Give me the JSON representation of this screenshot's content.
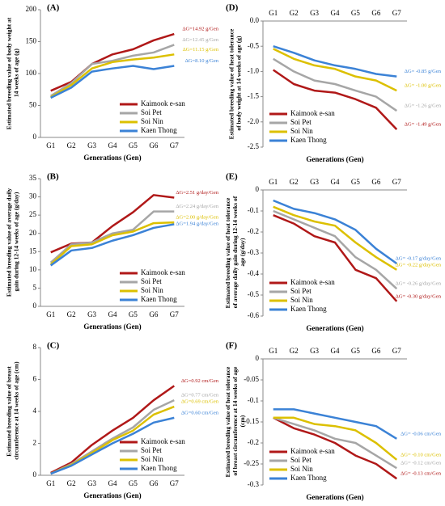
{
  "chart_data": [
    {
      "type": "line",
      "panel_label": "(A)",
      "y_label": "Estimated breeding value of body weight at 14 weeks of age (g)",
      "x_label": "Generations (Gen)",
      "categories": [
        "G1",
        "G2",
        "G3",
        "G4",
        "G5",
        "G6",
        "G7"
      ],
      "ylim": [
        0,
        200
      ],
      "yticks": [
        0,
        50,
        100,
        150,
        200
      ],
      "x_axis_position": "bottom",
      "legend": "lower right",
      "series": [
        {
          "name": "Kaimook e-san",
          "color": "#b01818",
          "values": [
            73,
            87,
            115,
            130,
            138,
            152,
            162
          ],
          "annotation": "ΔG=14.92 g/Gen"
        },
        {
          "name": "Soi Pet",
          "color": "#a6a6a6",
          "values": [
            65,
            85,
            115,
            120,
            128,
            133,
            145
          ],
          "annotation": "ΔG=12.45 g/Gen"
        },
        {
          "name": "Soi Nin",
          "color": "#dcc000",
          "values": [
            63,
            82,
            108,
            118,
            122,
            125,
            130
          ],
          "annotation": "ΔG=11.15 g/Gen"
        },
        {
          "name": "Kaen Thong",
          "color": "#3b82d6",
          "values": [
            62,
            78,
            103,
            108,
            112,
            107,
            112
          ],
          "annotation": "ΔG=8.10 g/Gen"
        }
      ]
    },
    {
      "type": "line",
      "panel_label": "(B)",
      "y_label": "Estimated breeding value of average daily gain during 12-14 weeks of age (g/day)",
      "x_label": "Generations (Gen)",
      "categories": [
        "G1",
        "G2",
        "G3",
        "G4",
        "G5",
        "G6",
        "G7"
      ],
      "ylim": [
        0,
        35
      ],
      "yticks": [
        0,
        5,
        10,
        15,
        20,
        25,
        30,
        35
      ],
      "x_axis_position": "bottom",
      "legend": "lower right",
      "series": [
        {
          "name": "Kaimook e-san",
          "color": "#b01818",
          "values": [
            14.8,
            17.2,
            17.5,
            22,
            25.8,
            30.5,
            29.8
          ],
          "annotation": "ΔG=2.51 g/day/Gen"
        },
        {
          "name": "Soi Pet",
          "color": "#a6a6a6",
          "values": [
            12,
            17,
            17.5,
            20,
            21,
            26,
            26
          ],
          "annotation": "ΔG=2.24 g/day/Gen"
        },
        {
          "name": "Soi Nin",
          "color": "#dcc000",
          "values": [
            11.5,
            16.5,
            17,
            19.5,
            20.5,
            22.8,
            23
          ],
          "annotation": "ΔG=2.00 g/day/Gen"
        },
        {
          "name": "Kaen Thong",
          "color": "#3b82d6",
          "values": [
            11.2,
            15.3,
            16,
            18,
            19.5,
            21.5,
            22.5
          ],
          "annotation": "ΔG=1.94 g/day/Gen"
        }
      ]
    },
    {
      "type": "line",
      "panel_label": "(C)",
      "y_label": "Estimated breeding value of breast circumference at 14 weeks of age (cm)",
      "x_label": "Generations (Gen)",
      "categories": [
        "G1",
        "G2",
        "G3",
        "G4",
        "G5",
        "G6",
        "G7"
      ],
      "ylim": [
        0,
        8
      ],
      "yticks": [
        0,
        2,
        4,
        6,
        8
      ],
      "x_axis_position": "bottom",
      "legend": "lower right",
      "series": [
        {
          "name": "Kaimook e-san",
          "color": "#b01818",
          "values": [
            0.15,
            0.8,
            1.9,
            2.8,
            3.6,
            4.7,
            5.6
          ],
          "annotation": "ΔG=0.92 cm/Gen"
        },
        {
          "name": "Soi Pet",
          "color": "#a6a6a6",
          "values": [
            0.1,
            0.7,
            1.5,
            2.3,
            3.0,
            4.1,
            4.7
          ],
          "annotation": "ΔG=0.77 cm/Gen"
        },
        {
          "name": "Soi Nin",
          "color": "#dcc000",
          "values": [
            0.1,
            0.65,
            1.4,
            2.2,
            2.8,
            3.8,
            4.3
          ],
          "annotation": "ΔG=0.69 cm/Gen"
        },
        {
          "name": "Kaen Thong",
          "color": "#3b82d6",
          "values": [
            0.1,
            0.6,
            1.3,
            2.0,
            2.6,
            3.3,
            3.6
          ],
          "annotation": "ΔG=0.60 cm/Gen"
        }
      ]
    },
    {
      "type": "line",
      "panel_label": "(D)",
      "y_label": "Estimated breeding value of heat tolerance of body weight at 14 weeks of age (g)",
      "x_label": "Generations (Gen)",
      "categories": [
        "G1",
        "G2",
        "G3",
        "G4",
        "G5",
        "G6",
        "G7"
      ],
      "ylim": [
        -2.5,
        0
      ],
      "yticks": [
        {
          "value": 0,
          "label": "0.0"
        },
        -0.5,
        {
          "value": -1,
          "label": "-1.0"
        },
        -1.5,
        {
          "value": -2,
          "label": "-2.0"
        },
        -2.5
      ],
      "x_axis_position": "top",
      "legend": "lower left",
      "series": [
        {
          "name": "Kaimook e-san",
          "color": "#b01818",
          "values": [
            -0.97,
            -1.25,
            -1.38,
            -1.42,
            -1.55,
            -1.72,
            -2.15
          ],
          "annotation": "ΔG= -1.49 g/Gen"
        },
        {
          "name": "Soi Pet",
          "color": "#a6a6a6",
          "values": [
            -0.75,
            -1.0,
            -1.18,
            -1.25,
            -1.38,
            -1.5,
            -1.78
          ],
          "annotation": "ΔG= -1.26 g/Gen"
        },
        {
          "name": "Soi Nin",
          "color": "#dcc000",
          "values": [
            -0.55,
            -0.75,
            -0.88,
            -0.95,
            -1.1,
            -1.18,
            -1.38
          ],
          "annotation": "ΔG= -1.00 g/Gen"
        },
        {
          "name": "Kaen Thong",
          "color": "#3b82d6",
          "values": [
            -0.5,
            -0.63,
            -0.78,
            -0.88,
            -0.95,
            -1.05,
            -1.1
          ],
          "annotation": "ΔG= -0.85 g/Gen"
        }
      ]
    },
    {
      "type": "line",
      "panel_label": "(E)",
      "y_label": "Estimated breeding value of heat tolerance of average daily gain during 12-14 weeks of age (g/day)",
      "x_label": "Generations (Gen)",
      "categories": [
        "G1",
        "G2",
        "G3",
        "G4",
        "G5",
        "G6",
        "G7"
      ],
      "ylim": [
        -0.6,
        0
      ],
      "yticks": [
        0,
        -0.1,
        -0.2,
        -0.3,
        -0.4,
        -0.5,
        -0.6
      ],
      "x_axis_position": "top",
      "legend": "lower left",
      "series": [
        {
          "name": "Kaimook e-san",
          "color": "#b01818",
          "values": [
            -0.12,
            -0.16,
            -0.22,
            -0.25,
            -0.38,
            -0.42,
            -0.53
          ],
          "annotation": "ΔG= -0.30 g/day/Gen"
        },
        {
          "name": "Soi Pet",
          "color": "#a6a6a6",
          "values": [
            -0.1,
            -0.14,
            -0.18,
            -0.22,
            -0.32,
            -0.38,
            -0.47
          ],
          "annotation": "ΔG= -0.26 g/day/Gen"
        },
        {
          "name": "Soi Nin",
          "color": "#dcc000",
          "values": [
            -0.08,
            -0.12,
            -0.15,
            -0.17,
            -0.25,
            -0.32,
            -0.38
          ],
          "annotation": "ΔG= -0.22 g/day/Gen"
        },
        {
          "name": "Kaen Thong",
          "color": "#3b82d6",
          "values": [
            -0.05,
            -0.09,
            -0.11,
            -0.14,
            -0.19,
            -0.28,
            -0.35
          ],
          "annotation": "ΔG= -0.17 g/day/Gen"
        }
      ]
    },
    {
      "type": "line",
      "panel_label": "(F)",
      "y_label": "Estimated breeding value of heat tolerance of breast circumference at 14 weeks of age (cm)",
      "x_label": "Generations (Gen)",
      "categories": [
        "G1",
        "G2",
        "G3",
        "G4",
        "G5",
        "G6",
        "G7"
      ],
      "ylim": [
        -0.3,
        0
      ],
      "yticks": [
        0,
        -0.05,
        -0.1,
        -0.15,
        -0.2,
        -0.25,
        -0.3
      ],
      "x_axis_position": "top",
      "legend": "lower left",
      "series": [
        {
          "name": "Kaimook e-san",
          "color": "#b01818",
          "values": [
            -0.14,
            -0.165,
            -0.18,
            -0.2,
            -0.23,
            -0.25,
            -0.285
          ],
          "annotation": "ΔG= -0.13 cm/Gen"
        },
        {
          "name": "Soi Pet",
          "color": "#a6a6a6",
          "values": [
            -0.14,
            -0.155,
            -0.17,
            -0.19,
            -0.2,
            -0.23,
            -0.26
          ],
          "annotation": "ΔG= -0.12 cm/Gen"
        },
        {
          "name": "Soi Nin",
          "color": "#dcc000",
          "values": [
            -0.14,
            -0.14,
            -0.155,
            -0.16,
            -0.17,
            -0.2,
            -0.24
          ],
          "annotation": "ΔG= -0.10 cm/Gen"
        },
        {
          "name": "Kaen Thong",
          "color": "#3b82d6",
          "values": [
            -0.12,
            -0.12,
            -0.13,
            -0.14,
            -0.15,
            -0.16,
            -0.19
          ],
          "annotation": "ΔG= -0.06 cm/Gen"
        }
      ]
    }
  ]
}
